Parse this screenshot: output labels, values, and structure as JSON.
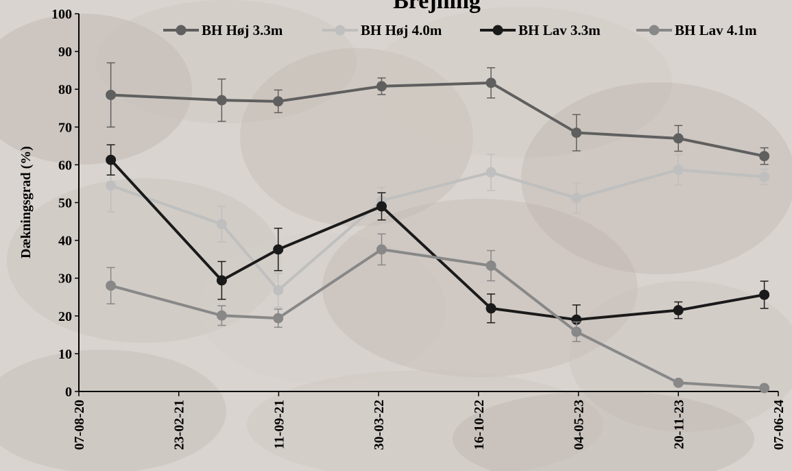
{
  "chart_data": {
    "type": "line",
    "title": "Brejning",
    "ylabel": "Dækningsgrad (%)",
    "xlabel": "",
    "ylim": [
      0,
      100
    ],
    "yticks": [
      0,
      10,
      20,
      30,
      40,
      50,
      60,
      70,
      80,
      90,
      100
    ],
    "xlim": [
      "07-08-20",
      "07-06-24"
    ],
    "xticks": [
      "07-08-20",
      "23-02-21",
      "11-09-21",
      "30-03-22",
      "16-10-22",
      "04-05-23",
      "20-11-23",
      "07-06-24"
    ],
    "grid": false,
    "legend_position": "top",
    "x": [
      "2020-10-10",
      "2021-05-20",
      "2021-09-10",
      "2022-04-05",
      "2022-11-10",
      "2023-04-30",
      "2023-11-20",
      "2024-05-10"
    ],
    "series": [
      {
        "name": "BH Høj 3.3m",
        "color": "#5f5f5f",
        "values": [
          78.5,
          77.1,
          76.8,
          80.8,
          81.7,
          68.5,
          67.0,
          62.3
        ],
        "errors": [
          8.5,
          5.6,
          3.0,
          2.2,
          4.0,
          4.8,
          3.4,
          2.2
        ]
      },
      {
        "name": "BH Høj 4.0m",
        "color": "#bfbfbf",
        "values": [
          54.5,
          44.3,
          26.8,
          50.5,
          58.0,
          51.2,
          58.7,
          56.8
        ],
        "errors": [
          7.0,
          4.7,
          4.5,
          3.5,
          4.8,
          4.0,
          4.0,
          2.0
        ]
      },
      {
        "name": "BH Lav 3.3m",
        "color": "#1a1a1a",
        "values": [
          61.3,
          29.4,
          37.6,
          49.0,
          22.0,
          19.0,
          21.5,
          25.6
        ],
        "errors": [
          4.0,
          5.0,
          5.6,
          3.6,
          3.8,
          3.9,
          2.2,
          3.6
        ]
      },
      {
        "name": "BH Lav 4.1m",
        "color": "#888888",
        "values": [
          28.0,
          20.1,
          19.4,
          37.6,
          33.3,
          15.8,
          2.3,
          0.9
        ],
        "errors": [
          4.8,
          2.6,
          2.4,
          4.1,
          4.0,
          2.6,
          0.3,
          0.3
        ]
      }
    ]
  }
}
